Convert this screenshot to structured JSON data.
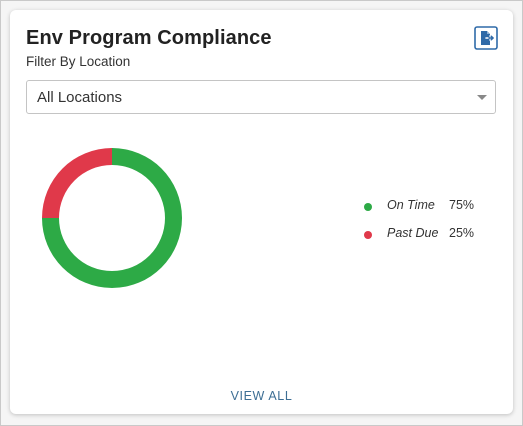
{
  "card": {
    "title": "Env Program Compliance",
    "filter_label": "Filter By Location",
    "export_icon": "export-file-icon",
    "location_select": {
      "selected": "All Locations"
    },
    "view_all_label": "VIEW ALL"
  },
  "colors": {
    "on_time": "#2daa46",
    "past_due": "#e0394a",
    "accent": "#2f6aa8"
  },
  "chart_data": {
    "type": "pie",
    "categories": [
      "On Time",
      "Past Due"
    ],
    "values": [
      75,
      25
    ],
    "value_labels": [
      "75%",
      "25%"
    ],
    "legend_position": "right"
  }
}
